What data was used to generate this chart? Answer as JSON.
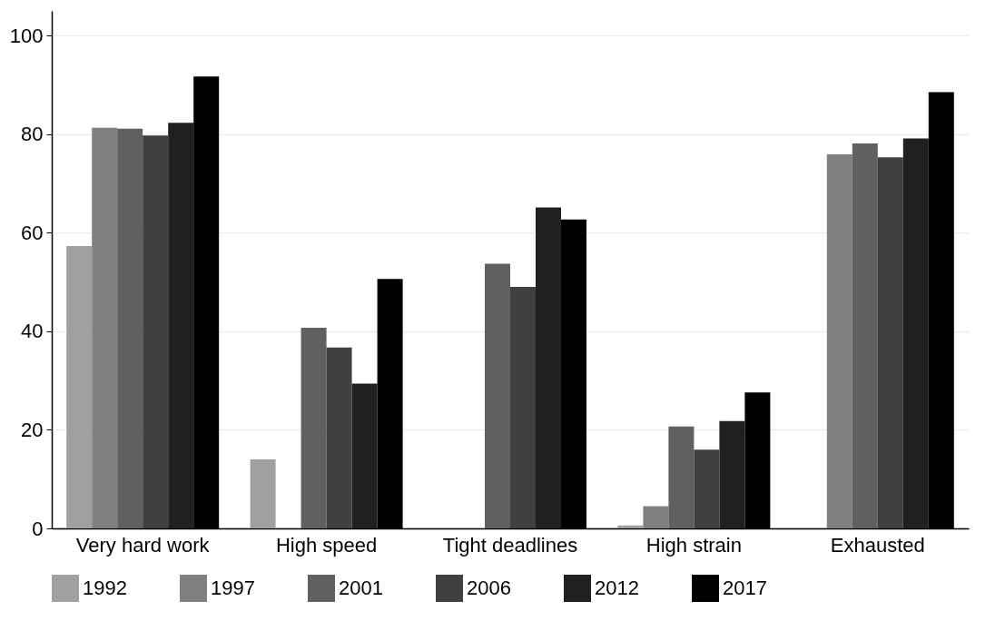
{
  "chart_data": {
    "type": "bar",
    "categories": [
      "Very hard work",
      "High speed",
      "Tight deadlines",
      "High strain",
      "Exhausted"
    ],
    "series": [
      {
        "name": "1992",
        "color": "#a0a0a0",
        "values": [
          57.3,
          14.0,
          null,
          0.6,
          null
        ]
      },
      {
        "name": "1997",
        "color": "#808080",
        "values": [
          81.3,
          null,
          null,
          4.5,
          75.9
        ]
      },
      {
        "name": "2001",
        "color": "#606060",
        "values": [
          81.1,
          40.7,
          53.7,
          20.7,
          78.1
        ]
      },
      {
        "name": "2006",
        "color": "#404040",
        "values": [
          79.7,
          36.7,
          49.0,
          16.0,
          75.3
        ]
      },
      {
        "name": "2012",
        "color": "#202020",
        "values": [
          82.3,
          29.4,
          65.1,
          21.8,
          79.1
        ]
      },
      {
        "name": "2017",
        "color": "#000000",
        "values": [
          91.7,
          50.6,
          62.7,
          27.6,
          88.5
        ]
      }
    ],
    "ylim": [
      0,
      105
    ],
    "yticks": [
      0,
      20,
      40,
      60,
      80,
      100
    ],
    "grid": "y",
    "legend": "bottom"
  }
}
